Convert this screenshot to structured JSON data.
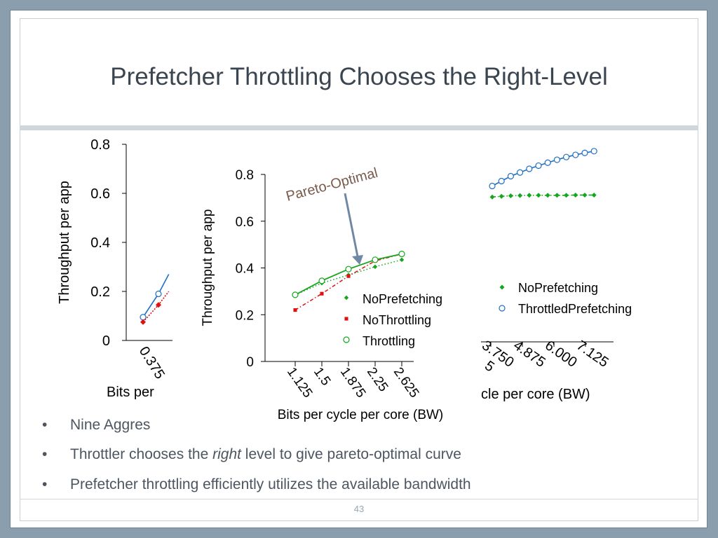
{
  "slide": {
    "title": "Prefetcher Throttling Chooses the Right-Level",
    "page_number": "43",
    "bullets": [
      {
        "text": "Nine Aggres"
      },
      {
        "pre": "Throttler chooses the ",
        "italic": "right",
        "post": " level to give pareto-optimal curve"
      },
      {
        "text": "Prefetcher throttling efficiently utilizes the available bandwidth"
      }
    ]
  },
  "annotation": {
    "label": "Pareto-Optimal",
    "color": "#7a5a4a"
  },
  "colors": {
    "blue": "#1f6fc4",
    "green": "#15a51f",
    "red": "#e01010"
  },
  "chart_data": [
    {
      "type": "line",
      "id": "left-background-chart",
      "ylabel": "Throughput per app",
      "xlabel": "Bits per",
      "ylim": [
        0,
        0.8
      ],
      "yticks": [
        0,
        0.2,
        0.4,
        0.6,
        0.8
      ],
      "ytick_labels": [
        "0",
        "0.2",
        "0.4",
        "0.6",
        "0.8"
      ],
      "x_tick_labels": [
        "0.375"
      ],
      "series": [
        {
          "color": "blue",
          "marker": "circle",
          "x": [
            0.375,
            0.75,
            1.0
          ],
          "y": [
            0.095,
            0.19,
            0.27
          ]
        },
        {
          "color": "red",
          "marker": "diamond",
          "x": [
            0.375,
            0.75,
            1.0
          ],
          "y": [
            0.075,
            0.145,
            0.2
          ]
        }
      ]
    },
    {
      "type": "line",
      "id": "middle-chart",
      "ylabel": "Throughput per app",
      "xlabel": "Bits per cycle per core (BW)",
      "ylim": [
        0,
        0.8
      ],
      "yticks": [
        0,
        0.2,
        0.4,
        0.6,
        0.8
      ],
      "ytick_labels": [
        "0",
        "0.2",
        "0.4",
        "0.6",
        "0.8"
      ],
      "x": [
        1.125,
        1.5,
        1.875,
        2.25,
        2.625
      ],
      "x_tick_labels": [
        "1.125",
        "1.5",
        "1.875",
        "2.25",
        "2.625"
      ],
      "legend_position": "lower-right",
      "series": [
        {
          "name": "NoPrefetching",
          "color": "green",
          "marker": "diamond",
          "line": "dotted",
          "y": [
            0.285,
            0.335,
            0.37,
            0.405,
            0.435
          ]
        },
        {
          "name": "NoThrottling",
          "color": "red",
          "marker": "square",
          "line": "dashdot",
          "y": [
            0.22,
            0.29,
            0.365,
            0.43,
            0.46
          ]
        },
        {
          "name": "Throttling",
          "color": "green",
          "marker": "circle",
          "line": "solid",
          "y": [
            0.285,
            0.345,
            0.395,
            0.435,
            0.46
          ]
        }
      ]
    },
    {
      "type": "line",
      "id": "right-background-chart",
      "xlabel": "ycle per core (BW)",
      "x_tick_labels": [
        "3.750",
        "4.875",
        "6.000",
        "7.125"
      ],
      "x_tick_fragment": "5",
      "legend_position": "lower-middle",
      "series": [
        {
          "name": "NoPrefetching",
          "color": "green",
          "marker": "diamond",
          "line": "dashdot",
          "x": [
            0,
            1,
            2,
            3,
            4,
            5,
            6,
            7,
            8,
            9,
            10,
            11
          ],
          "y": [
            0.585,
            0.588,
            0.59,
            0.591,
            0.592,
            0.592,
            0.592,
            0.592,
            0.592,
            0.593,
            0.593,
            0.593
          ]
        },
        {
          "name": "ThrottledPrefetching",
          "color": "blue",
          "marker": "circle",
          "line": "solid",
          "x": [
            0,
            1,
            2,
            3,
            4,
            5,
            6,
            7,
            8,
            9,
            10,
            11
          ],
          "y": [
            0.63,
            0.65,
            0.67,
            0.685,
            0.7,
            0.713,
            0.725,
            0.737,
            0.748,
            0.757,
            0.765,
            0.772
          ]
        }
      ]
    }
  ]
}
